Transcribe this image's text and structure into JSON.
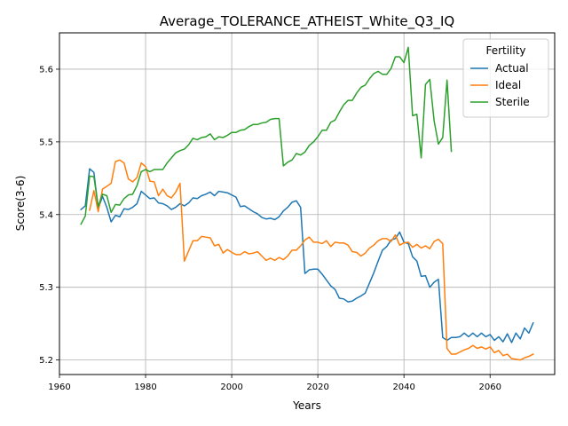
{
  "chart_data": {
    "type": "line",
    "title": "Average_TOLERANCE_ATHEIST_White_Q3_IQ",
    "xlabel": "Years",
    "ylabel": "Score(3-6)",
    "xlim": [
      1960,
      2075
    ],
    "ylim": [
      5.18,
      5.65
    ],
    "xticks": [
      1960,
      1980,
      2000,
      2020,
      2040,
      2060
    ],
    "yticks": [
      5.2,
      5.3,
      5.4,
      5.5,
      5.6
    ],
    "ytick_labels": [
      "5.2",
      "5.3",
      "5.4",
      "5.5",
      "5.6"
    ],
    "grid": true,
    "legend": {
      "title": "Fertility",
      "position": "top-right"
    },
    "series": [
      {
        "name": "Actual",
        "color": "#1f77b4",
        "points": [
          [
            1965,
            5.407
          ],
          [
            1966,
            5.412
          ],
          [
            1967,
            5.463
          ],
          [
            1968,
            5.458
          ],
          [
            1969,
            5.408
          ],
          [
            1970,
            5.425
          ],
          [
            1971,
            5.41
          ],
          [
            1972,
            5.39
          ],
          [
            1973,
            5.399
          ],
          [
            1974,
            5.397
          ],
          [
            1975,
            5.408
          ],
          [
            1976,
            5.407
          ],
          [
            1977,
            5.41
          ],
          [
            1978,
            5.415
          ],
          [
            1979,
            5.432
          ],
          [
            1980,
            5.427
          ],
          [
            1981,
            5.422
          ],
          [
            1982,
            5.423
          ],
          [
            1983,
            5.416
          ],
          [
            1984,
            5.415
          ],
          [
            1985,
            5.412
          ],
          [
            1986,
            5.407
          ],
          [
            1987,
            5.41
          ],
          [
            1988,
            5.415
          ],
          [
            1989,
            5.412
          ],
          [
            1990,
            5.416
          ],
          [
            1991,
            5.423
          ],
          [
            1992,
            5.422
          ],
          [
            1993,
            5.426
          ],
          [
            1994,
            5.428
          ],
          [
            1995,
            5.431
          ],
          [
            1996,
            5.426
          ],
          [
            1997,
            5.432
          ],
          [
            1998,
            5.431
          ],
          [
            1999,
            5.43
          ],
          [
            2000,
            5.427
          ],
          [
            2001,
            5.424
          ],
          [
            2002,
            5.411
          ],
          [
            2003,
            5.412
          ],
          [
            2004,
            5.408
          ],
          [
            2005,
            5.404
          ],
          [
            2006,
            5.401
          ],
          [
            2007,
            5.396
          ],
          [
            2008,
            5.394
          ],
          [
            2009,
            5.395
          ],
          [
            2010,
            5.393
          ],
          [
            2011,
            5.397
          ],
          [
            2012,
            5.405
          ],
          [
            2013,
            5.41
          ],
          [
            2014,
            5.417
          ],
          [
            2015,
            5.419
          ],
          [
            2016,
            5.41
          ],
          [
            2017,
            5.319
          ],
          [
            2018,
            5.324
          ],
          [
            2019,
            5.325
          ],
          [
            2020,
            5.325
          ],
          [
            2021,
            5.318
          ],
          [
            2022,
            5.31
          ],
          [
            2023,
            5.302
          ],
          [
            2024,
            5.297
          ],
          [
            2025,
            5.285
          ],
          [
            2026,
            5.284
          ],
          [
            2027,
            5.28
          ],
          [
            2028,
            5.281
          ],
          [
            2029,
            5.285
          ],
          [
            2030,
            5.288
          ],
          [
            2031,
            5.292
          ],
          [
            2032,
            5.306
          ],
          [
            2033,
            5.32
          ],
          [
            2034,
            5.336
          ],
          [
            2035,
            5.351
          ],
          [
            2036,
            5.356
          ],
          [
            2037,
            5.365
          ],
          [
            2038,
            5.367
          ],
          [
            2039,
            5.376
          ],
          [
            2040,
            5.362
          ],
          [
            2041,
            5.36
          ],
          [
            2042,
            5.342
          ],
          [
            2043,
            5.336
          ],
          [
            2044,
            5.315
          ],
          [
            2045,
            5.316
          ],
          [
            2046,
            5.3
          ],
          [
            2047,
            5.307
          ],
          [
            2048,
            5.311
          ],
          [
            2049,
            5.231
          ],
          [
            2050,
            5.227
          ],
          [
            2051,
            5.231
          ],
          [
            2052,
            5.231
          ],
          [
            2053,
            5.232
          ],
          [
            2054,
            5.237
          ],
          [
            2055,
            5.232
          ],
          [
            2056,
            5.237
          ],
          [
            2057,
            5.232
          ],
          [
            2058,
            5.237
          ],
          [
            2059,
            5.232
          ],
          [
            2060,
            5.235
          ],
          [
            2061,
            5.227
          ],
          [
            2062,
            5.232
          ],
          [
            2063,
            5.225
          ],
          [
            2064,
            5.236
          ],
          [
            2065,
            5.224
          ],
          [
            2066,
            5.237
          ],
          [
            2067,
            5.229
          ],
          [
            2068,
            5.244
          ],
          [
            2069,
            5.237
          ],
          [
            2070,
            5.251
          ]
        ]
      },
      {
        "name": "Ideal",
        "color": "#ff7f0e",
        "points": [
          [
            1967,
            5.406
          ],
          [
            1968,
            5.433
          ],
          [
            1969,
            5.404
          ],
          [
            1970,
            5.435
          ],
          [
            1971,
            5.439
          ],
          [
            1972,
            5.443
          ],
          [
            1973,
            5.473
          ],
          [
            1974,
            5.475
          ],
          [
            1975,
            5.471
          ],
          [
            1976,
            5.449
          ],
          [
            1977,
            5.445
          ],
          [
            1978,
            5.451
          ],
          [
            1979,
            5.471
          ],
          [
            1980,
            5.466
          ],
          [
            1981,
            5.446
          ],
          [
            1982,
            5.445
          ],
          [
            1983,
            5.426
          ],
          [
            1984,
            5.435
          ],
          [
            1985,
            5.426
          ],
          [
            1986,
            5.423
          ],
          [
            1987,
            5.431
          ],
          [
            1988,
            5.443
          ],
          [
            1989,
            5.336
          ],
          [
            1990,
            5.35
          ],
          [
            1991,
            5.364
          ],
          [
            1992,
            5.364
          ],
          [
            1993,
            5.37
          ],
          [
            1994,
            5.369
          ],
          [
            1995,
            5.368
          ],
          [
            1996,
            5.357
          ],
          [
            1997,
            5.359
          ],
          [
            1998,
            5.347
          ],
          [
            1999,
            5.352
          ],
          [
            2000,
            5.348
          ],
          [
            2001,
            5.345
          ],
          [
            2002,
            5.345
          ],
          [
            2003,
            5.349
          ],
          [
            2004,
            5.346
          ],
          [
            2005,
            5.347
          ],
          [
            2006,
            5.349
          ],
          [
            2007,
            5.343
          ],
          [
            2008,
            5.337
          ],
          [
            2009,
            5.34
          ],
          [
            2010,
            5.337
          ],
          [
            2011,
            5.341
          ],
          [
            2012,
            5.338
          ],
          [
            2013,
            5.343
          ],
          [
            2014,
            5.351
          ],
          [
            2015,
            5.351
          ],
          [
            2016,
            5.357
          ],
          [
            2017,
            5.365
          ],
          [
            2018,
            5.369
          ],
          [
            2019,
            5.362
          ],
          [
            2020,
            5.362
          ],
          [
            2021,
            5.36
          ],
          [
            2022,
            5.364
          ],
          [
            2023,
            5.356
          ],
          [
            2024,
            5.362
          ],
          [
            2025,
            5.361
          ],
          [
            2026,
            5.361
          ],
          [
            2027,
            5.358
          ],
          [
            2028,
            5.349
          ],
          [
            2029,
            5.348
          ],
          [
            2030,
            5.343
          ],
          [
            2031,
            5.347
          ],
          [
            2032,
            5.354
          ],
          [
            2033,
            5.358
          ],
          [
            2034,
            5.364
          ],
          [
            2035,
            5.367
          ],
          [
            2036,
            5.367
          ],
          [
            2037,
            5.363
          ],
          [
            2038,
            5.372
          ],
          [
            2039,
            5.358
          ],
          [
            2040,
            5.361
          ],
          [
            2041,
            5.362
          ],
          [
            2042,
            5.355
          ],
          [
            2043,
            5.359
          ],
          [
            2044,
            5.354
          ],
          [
            2045,
            5.357
          ],
          [
            2046,
            5.353
          ],
          [
            2047,
            5.363
          ],
          [
            2048,
            5.366
          ],
          [
            2049,
            5.36
          ],
          [
            2050,
            5.216
          ],
          [
            2051,
            5.208
          ],
          [
            2052,
            5.208
          ],
          [
            2053,
            5.211
          ],
          [
            2054,
            5.214
          ],
          [
            2055,
            5.216
          ],
          [
            2056,
            5.22
          ],
          [
            2057,
            5.216
          ],
          [
            2058,
            5.218
          ],
          [
            2059,
            5.215
          ],
          [
            2060,
            5.218
          ],
          [
            2061,
            5.21
          ],
          [
            2062,
            5.213
          ],
          [
            2063,
            5.206
          ],
          [
            2064,
            5.208
          ],
          [
            2065,
            5.202
          ],
          [
            2066,
            5.201
          ],
          [
            2067,
            5.2
          ],
          [
            2068,
            5.203
          ],
          [
            2069,
            5.205
          ],
          [
            2070,
            5.208
          ]
        ]
      },
      {
        "name": "Sterile",
        "color": "#2ca02c",
        "points": [
          [
            1965,
            5.387
          ],
          [
            1966,
            5.398
          ],
          [
            1967,
            5.453
          ],
          [
            1968,
            5.452
          ],
          [
            1969,
            5.411
          ],
          [
            1970,
            5.428
          ],
          [
            1971,
            5.426
          ],
          [
            1972,
            5.403
          ],
          [
            1973,
            5.414
          ],
          [
            1974,
            5.413
          ],
          [
            1975,
            5.422
          ],
          [
            1976,
            5.427
          ],
          [
            1977,
            5.428
          ],
          [
            1978,
            5.44
          ],
          [
            1979,
            5.459
          ],
          [
            1980,
            5.462
          ],
          [
            1981,
            5.459
          ],
          [
            1982,
            5.462
          ],
          [
            1983,
            5.462
          ],
          [
            1984,
            5.462
          ],
          [
            1985,
            5.471
          ],
          [
            1986,
            5.478
          ],
          [
            1987,
            5.485
          ],
          [
            1988,
            5.488
          ],
          [
            1989,
            5.49
          ],
          [
            1990,
            5.496
          ],
          [
            1991,
            5.505
          ],
          [
            1992,
            5.503
          ],
          [
            1993,
            5.506
          ],
          [
            1994,
            5.507
          ],
          [
            1995,
            5.511
          ],
          [
            1996,
            5.503
          ],
          [
            1997,
            5.507
          ],
          [
            1998,
            5.506
          ],
          [
            1999,
            5.509
          ],
          [
            2000,
            5.513
          ],
          [
            2001,
            5.513
          ],
          [
            2002,
            5.516
          ],
          [
            2003,
            5.517
          ],
          [
            2004,
            5.521
          ],
          [
            2005,
            5.524
          ],
          [
            2006,
            5.524
          ],
          [
            2007,
            5.526
          ],
          [
            2008,
            5.527
          ],
          [
            2009,
            5.531
          ],
          [
            2010,
            5.532
          ],
          [
            2011,
            5.532
          ],
          [
            2012,
            5.467
          ],
          [
            2013,
            5.472
          ],
          [
            2014,
            5.475
          ],
          [
            2015,
            5.484
          ],
          [
            2016,
            5.482
          ],
          [
            2017,
            5.486
          ],
          [
            2018,
            5.495
          ],
          [
            2019,
            5.5
          ],
          [
            2020,
            5.507
          ],
          [
            2021,
            5.516
          ],
          [
            2022,
            5.516
          ],
          [
            2023,
            5.527
          ],
          [
            2024,
            5.53
          ],
          [
            2025,
            5.541
          ],
          [
            2026,
            5.551
          ],
          [
            2027,
            5.557
          ],
          [
            2028,
            5.557
          ],
          [
            2029,
            5.567
          ],
          [
            2030,
            5.575
          ],
          [
            2031,
            5.578
          ],
          [
            2032,
            5.587
          ],
          [
            2033,
            5.594
          ],
          [
            2034,
            5.597
          ],
          [
            2035,
            5.593
          ],
          [
            2036,
            5.593
          ],
          [
            2037,
            5.601
          ],
          [
            2038,
            5.617
          ],
          [
            2039,
            5.617
          ],
          [
            2040,
            5.609
          ],
          [
            2041,
            5.63
          ],
          [
            2042,
            5.536
          ],
          [
            2043,
            5.538
          ],
          [
            2044,
            5.478
          ],
          [
            2045,
            5.579
          ],
          [
            2046,
            5.586
          ],
          [
            2047,
            5.529
          ],
          [
            2048,
            5.497
          ],
          [
            2049,
            5.506
          ],
          [
            2050,
            5.585
          ],
          [
            2051,
            5.487
          ]
        ]
      }
    ]
  }
}
